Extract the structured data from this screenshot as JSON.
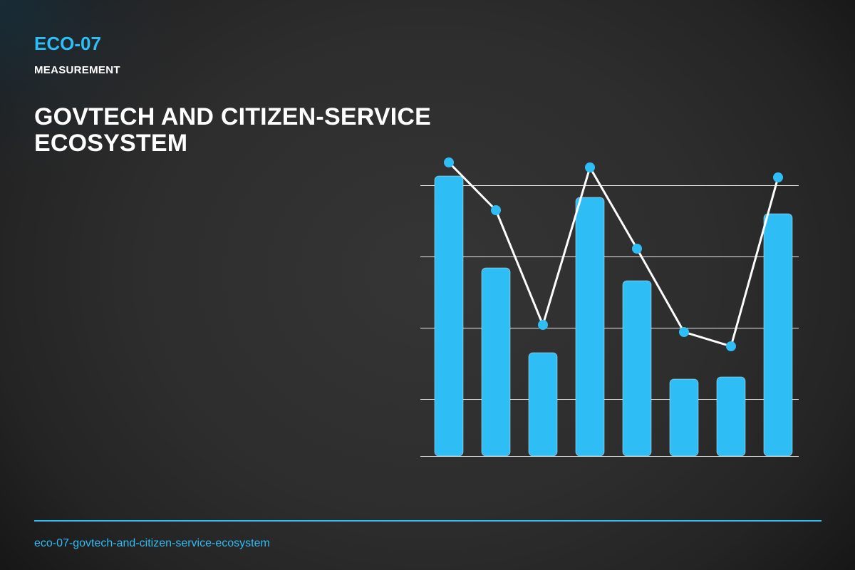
{
  "header": {
    "code": "ECO-07",
    "category": "MEASUREMENT",
    "title": "GOVTECH AND CITIZEN-SERVICE ECOSYSTEM"
  },
  "footer": {
    "slug": "eco-07-govtech-and-citizen-service-ecosystem"
  },
  "colors": {
    "accent": "#2ebdf5",
    "background": "#2d2d2d",
    "text": "#ffffff",
    "gridline": "#ffffff",
    "line": "#ffffff"
  },
  "chart_data": {
    "type": "bar",
    "title": "",
    "xlabel": "",
    "ylabel": "",
    "categories": [
      "",
      "",
      "",
      "",
      "",
      "",
      "",
      ""
    ],
    "ylim": [
      0,
      3.8
    ],
    "grid": true,
    "legend": "none",
    "series": [
      {
        "type": "bar",
        "values": [
          3.93,
          2.64,
          1.45,
          3.63,
          2.46,
          1.08,
          1.11,
          3.4
        ]
      },
      {
        "type": "line",
        "values": [
          4.12,
          3.45,
          1.84,
          4.05,
          2.91,
          1.74,
          1.54,
          3.91
        ]
      }
    ]
  }
}
